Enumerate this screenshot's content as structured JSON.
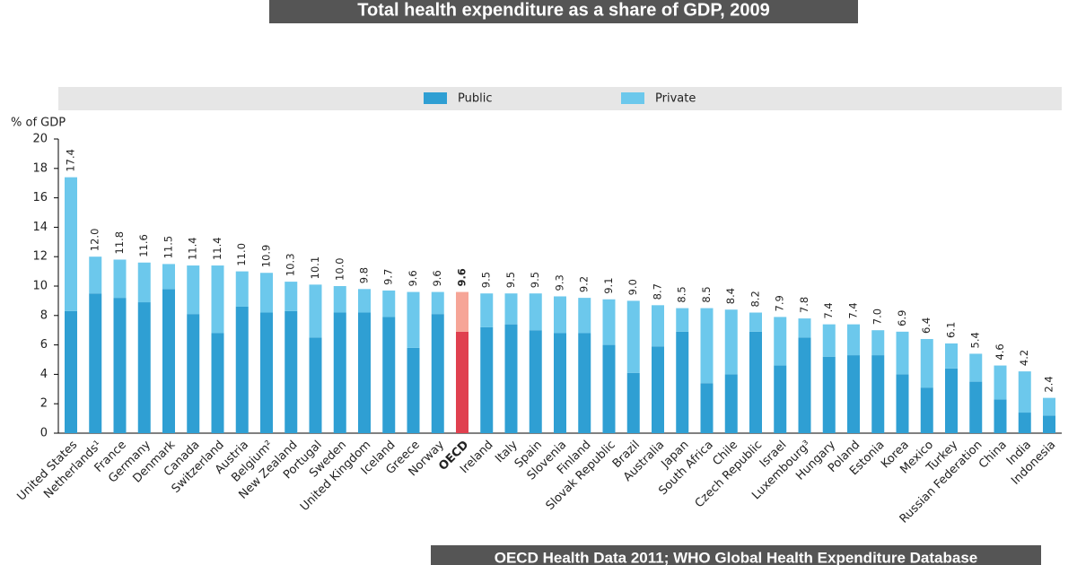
{
  "chart_data": {
    "type": "stacked_bar",
    "title": "Total health expenditure as a share of GDP, 2009",
    "source": "OECD Health Data 2011; WHO Global Health Expenditure Database",
    "y_label": "% of GDP",
    "categories": [
      "United States",
      "Netherlands¹",
      "France",
      "Germany",
      "Denmark",
      "Canada",
      "Switzerland",
      "Austria",
      "Belgium²",
      "New Zealand",
      "Portugal",
      "Sweden",
      "United Kingdom",
      "Iceland",
      "Greece",
      "Norway",
      "OECD",
      "Ireland",
      "Italy",
      "Spain",
      "Slovenia",
      "Finland",
      "Slovak Republic",
      "Brazil",
      "Australia",
      "Japan",
      "South Africa",
      "Chile",
      "Czech Republic",
      "Israel",
      "Luxembourg³",
      "Hungary",
      "Poland",
      "Estonia",
      "Korea",
      "Mexico",
      "Turkey",
      "Russian Federation",
      "China",
      "India",
      "Indonesia"
    ],
    "series": [
      {
        "name": "Public",
        "color": "#2f9fd3",
        "values": [
          8.3,
          9.5,
          9.2,
          8.9,
          9.8,
          8.1,
          6.8,
          8.6,
          8.2,
          8.3,
          6.5,
          8.2,
          8.2,
          7.9,
          5.8,
          8.1,
          6.9,
          7.2,
          7.4,
          7.0,
          6.8,
          6.8,
          6.0,
          4.1,
          5.9,
          6.9,
          3.4,
          4.0,
          6.9,
          4.6,
          6.5,
          5.2,
          5.3,
          5.3,
          4.0,
          3.1,
          4.4,
          3.5,
          2.3,
          1.4,
          1.2
        ]
      },
      {
        "name": "Private",
        "color": "#6cc8ec",
        "values": [
          9.1,
          2.5,
          2.6,
          2.7,
          1.7,
          3.3,
          4.6,
          2.4,
          2.7,
          2.0,
          3.6,
          1.8,
          1.6,
          1.8,
          3.8,
          1.5,
          2.7,
          2.3,
          2.1,
          2.5,
          2.5,
          2.4,
          3.1,
          4.9,
          2.8,
          1.6,
          5.1,
          4.4,
          1.3,
          3.3,
          1.3,
          2.2,
          2.1,
          1.7,
          2.9,
          3.3,
          1.7,
          1.9,
          2.3,
          2.8,
          1.2
        ]
      }
    ],
    "totals": [
      17.4,
      12.0,
      11.8,
      11.6,
      11.5,
      11.4,
      11.4,
      11.0,
      10.9,
      10.3,
      10.1,
      10.0,
      9.8,
      9.7,
      9.6,
      9.6,
      9.6,
      9.5,
      9.5,
      9.5,
      9.3,
      9.2,
      9.1,
      9.0,
      8.7,
      8.5,
      8.5,
      8.4,
      8.2,
      7.9,
      7.8,
      7.4,
      7.4,
      7.0,
      6.9,
      6.4,
      6.1,
      5.4,
      4.6,
      4.2,
      2.4
    ],
    "value_labels": [
      "17.4",
      "12.0",
      "11.8",
      "11.6",
      "11.5",
      "11.4",
      "11.4",
      "11.0",
      "10.9",
      "10.3",
      "10.1",
      "10.0",
      "9.8",
      "9.7",
      "9.6",
      "9.6",
      "9.6",
      "9.5",
      "9.5",
      "9.5",
      "9.3",
      "9.2",
      "9.1",
      "9.0",
      "8.7",
      "8.5",
      "8.5",
      "8.4",
      "8.2",
      "7.9",
      "7.8",
      "7.4",
      "7.4",
      "7.0",
      "6.9",
      "6.4",
      "6.1",
      "5.4",
      "4.6",
      "4.2",
      "2.4"
    ],
    "highlight": {
      "category": "OECD",
      "colors": [
        "#e0404f",
        "#f6a597"
      ]
    },
    "ylim": [
      0,
      20
    ],
    "yticks": [
      0,
      2,
      4,
      6,
      8,
      10,
      12,
      14,
      16,
      18,
      20
    ],
    "grid": false,
    "legend": "top"
  }
}
